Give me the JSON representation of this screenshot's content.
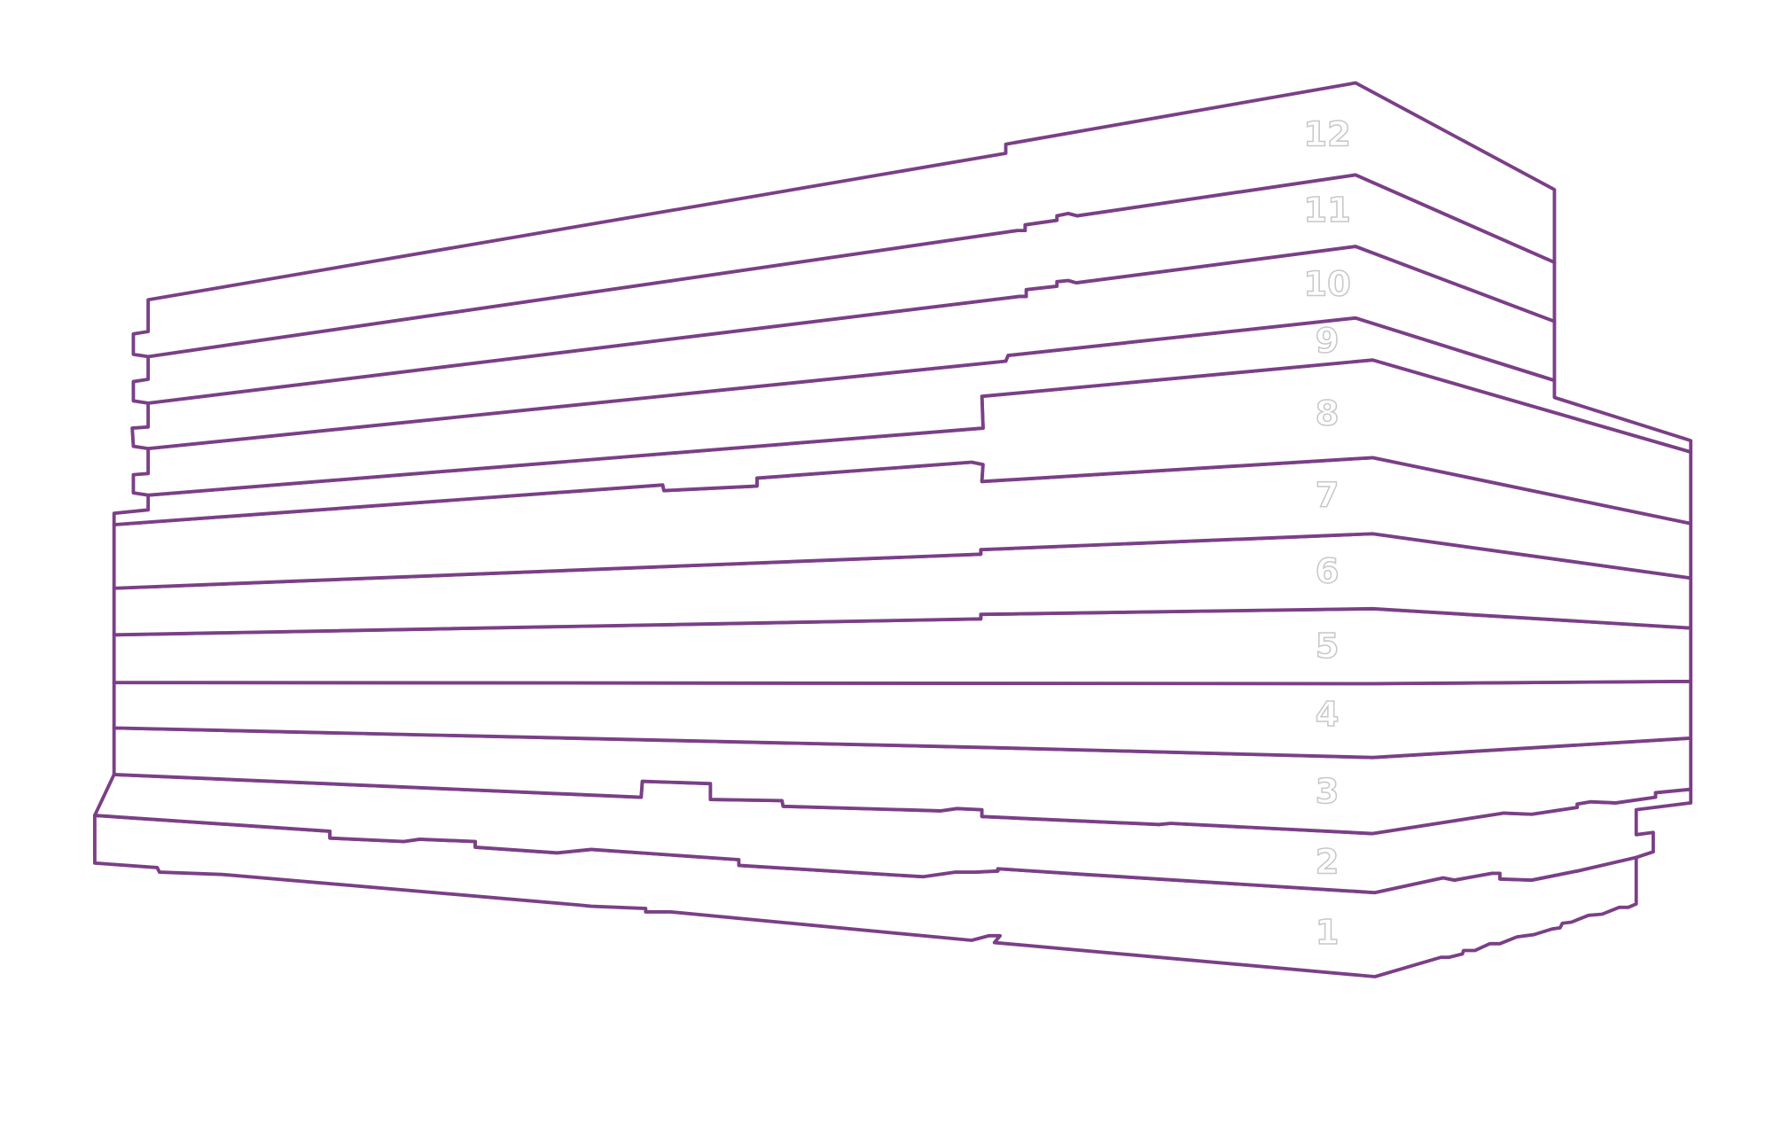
{
  "floors": [
    "1",
    "2",
    "3",
    "4",
    "5",
    "6",
    "7",
    "8",
    "9",
    "10",
    "11",
    "12"
  ]
}
